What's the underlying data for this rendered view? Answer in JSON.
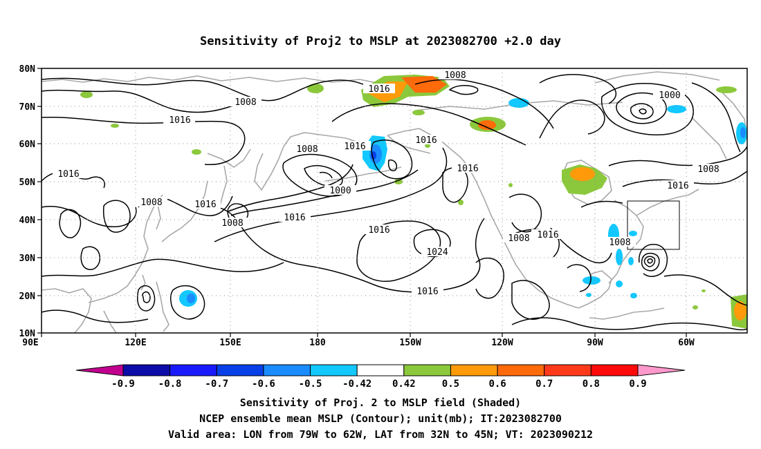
{
  "title": "Sensitivity of Proj2 to MSLP at 2023082700 +2.0 day",
  "axes": {
    "lat_ticks": [
      "80N",
      "70N",
      "60N",
      "50N",
      "40N",
      "30N",
      "20N",
      "10N"
    ],
    "lon_ticks": [
      "90E",
      "120E",
      "150E",
      "180",
      "150W",
      "120W",
      "90W",
      "60W"
    ],
    "lon_range": [
      "90E",
      "48W"
    ],
    "lat_range": [
      "10N",
      "80N"
    ],
    "grid": "dotted"
  },
  "colorbar": {
    "labels": [
      "-0.9",
      "-0.8",
      "-0.7",
      "-0.6",
      "-0.5",
      "-0.42",
      "0.42",
      "0.5",
      "0.6",
      "0.7",
      "0.8",
      "0.9"
    ],
    "colors": [
      "#c2008f",
      "#0c0ca8",
      "#1a1aff",
      "#0840e8",
      "#1a8cff",
      "#12c8ff",
      "#ffffff",
      "#8cc83c",
      "#ff9a0a",
      "#ff6a0a",
      "#ff3a1a",
      "#ff0a0a",
      "#ff99cc"
    ]
  },
  "contour_labels": [
    "1008",
    "1016",
    "1000",
    "1024"
  ],
  "valid_area": {
    "lon": [
      "79W",
      "62W"
    ],
    "lat": [
      "32N",
      "45N"
    ]
  },
  "captions": {
    "line1": "Sensitivity of Proj. 2 to MSLP field (Shaded)",
    "line2": "NCEP ensemble mean MSLP (Contour); unit(mb); IT:2023082700",
    "line3": "Valid area: LON from 79W to 62W, LAT from 32N to 45N; VT: 2023090212"
  }
}
